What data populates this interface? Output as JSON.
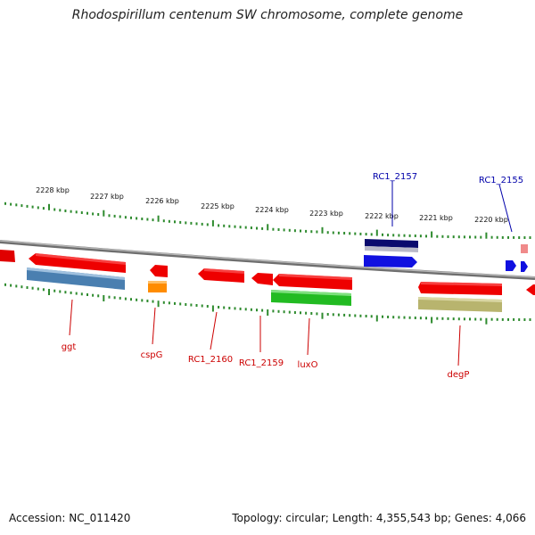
{
  "title": "Rhodospirillum centenum SW chromosome, complete genome",
  "footer": {
    "accession": "Accession: NC_011420",
    "topology": "Topology: circular; Length: 4,355,543 bp; Genes: 4,066"
  },
  "colors": {
    "backbone": "#8a8a8a",
    "tick": "#2e8b2e",
    "label_red": "#cc0000",
    "label_blue": "#0000aa"
  },
  "scale_labels": [
    "2228 kbp",
    "2227 kbp",
    "2226 kbp",
    "2225 kbp",
    "2224 kbp",
    "2223 kbp",
    "2222 kbp",
    "2221 kbp",
    "2220 kbp"
  ],
  "gene_labels": [
    "RC1_2157",
    "RC1_2155",
    "ggt",
    "cspG",
    "RC1_2160",
    "RC1_2159",
    "luxO",
    "degP"
  ]
}
